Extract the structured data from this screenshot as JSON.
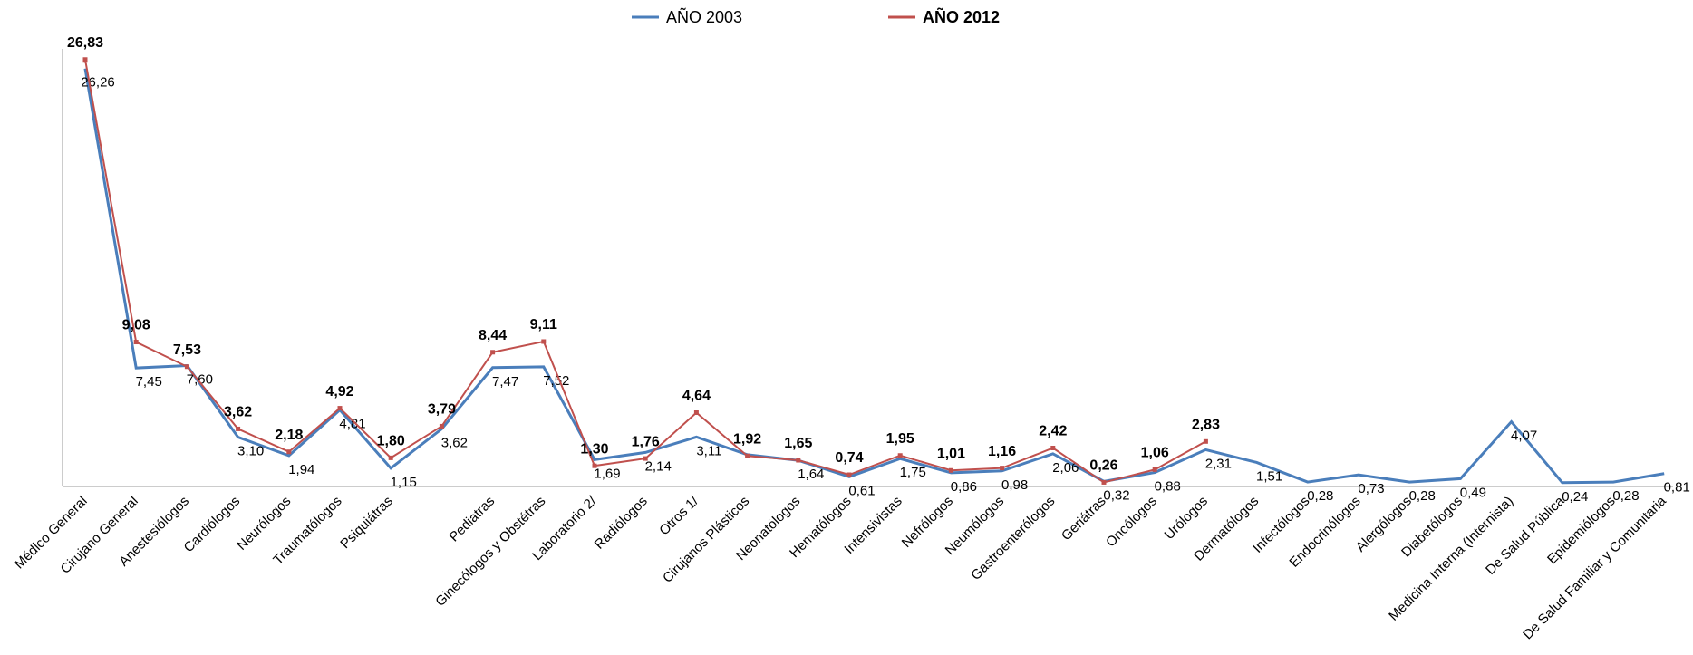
{
  "chart_data": {
    "type": "line",
    "categories": [
      "Médico General",
      "Cirujano General",
      "Anestesiólogos",
      "Cardiólogos",
      "Neurólogos",
      "Traumatólogos",
      "Psiquiátras",
      null,
      "Pediatras",
      "Ginecólogos y Obstétras",
      "Laboratorio  2/",
      "Radiólogos",
      "Otros  1/",
      "Cirujanos Plásticos",
      "Neonatólogos",
      "Hematólogos",
      "Intensivistas",
      "Nefrólogos",
      "Neumólogos",
      "Gastroenterólogos",
      "Geriátras",
      "Oncólogos",
      "Urólogos",
      "Dermatólogos",
      "Infectólogos",
      "Endocrinólogos",
      "Alergólogos",
      "Diabetólogos",
      "Medicina Interna (Internista)",
      "De Salud Pública",
      "Epidemiólogos",
      "De Salud Familiar y Comunitaria"
    ],
    "series": [
      {
        "name": "AÑO 2003",
        "color": "#4a7ebb",
        "values": [
          26.26,
          7.45,
          7.6,
          3.1,
          1.94,
          4.81,
          1.15,
          3.62,
          7.47,
          7.52,
          1.69,
          2.14,
          3.11,
          2.0,
          1.64,
          0.61,
          1.75,
          0.86,
          0.98,
          2.06,
          0.32,
          0.88,
          2.31,
          1.51,
          0.28,
          0.73,
          0.28,
          0.49,
          4.07,
          0.24,
          0.28,
          0.81
        ],
        "value_labels": [
          "26,26",
          "7,45",
          "7,60",
          "3,10",
          "1,94",
          "4,81",
          "1,15",
          "3,62",
          "7,47",
          "7,52",
          "1,69",
          "2,14",
          "3,11",
          null,
          "1,64",
          "0,61",
          "1,75",
          "0,86",
          "0,98",
          "2,06",
          "0,32",
          "0,88",
          "2,31",
          "1,51",
          "0,28",
          "0,73",
          "0,28",
          "0,49",
          "4,07",
          "0,24",
          "0,28",
          "0,81"
        ]
      },
      {
        "name": "AÑO 2012",
        "color": "#c0504d",
        "values": [
          26.83,
          9.08,
          7.53,
          3.62,
          2.18,
          4.92,
          1.8,
          3.79,
          8.44,
          9.11,
          1.3,
          1.76,
          4.64,
          1.92,
          1.65,
          0.74,
          1.95,
          1.01,
          1.16,
          2.42,
          0.26,
          1.06,
          2.83,
          null,
          null,
          null,
          null,
          null,
          null,
          null,
          null,
          null
        ],
        "value_labels": [
          "26,83",
          "9,08",
          "7,53",
          "3,62",
          "2,18",
          "4,92",
          "1,80",
          "3,79",
          "8,44",
          "9,11",
          "1,30",
          "1,76",
          "4,64",
          "1,92",
          "1,65",
          "0,74",
          "1,95",
          "1,01",
          "1,16",
          "2,42",
          "0,26",
          "1,06",
          "2,83",
          null,
          null,
          null,
          null,
          null,
          null,
          null,
          null,
          null
        ]
      }
    ],
    "ylim": [
      0,
      27.5
    ]
  }
}
